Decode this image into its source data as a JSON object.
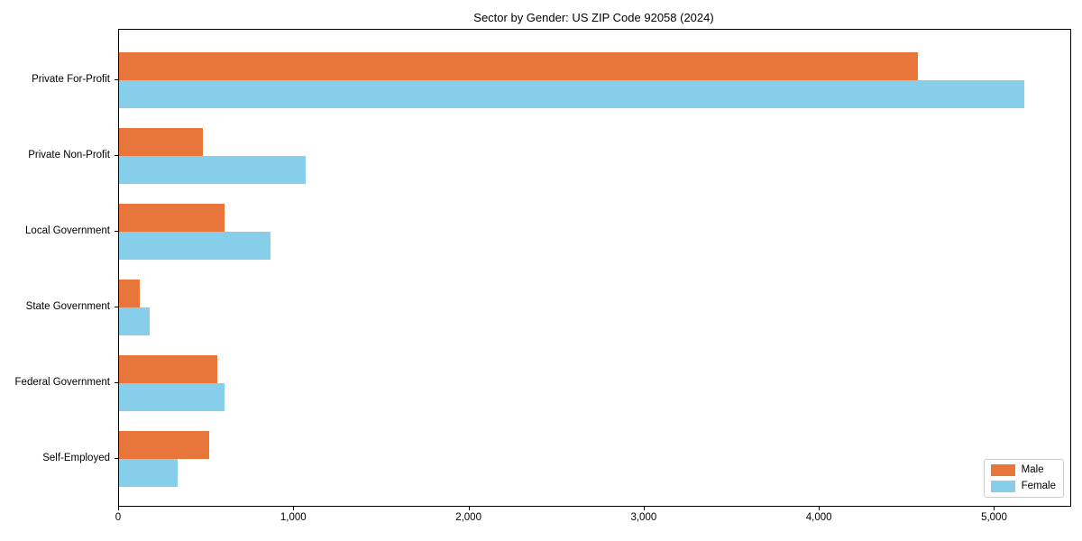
{
  "chart_data": {
    "type": "bar",
    "orientation": "horizontal",
    "title": "Sector by Gender: US ZIP Code 92058 (2024)",
    "categories": [
      "Private For-Profit",
      "Private Non-Profit",
      "Local Government",
      "State Government",
      "Federal Government",
      "Self-Employed"
    ],
    "series": [
      {
        "name": "Male",
        "color": "#e8763a",
        "values": [
          4560,
          480,
          600,
          120,
          560,
          515
        ]
      },
      {
        "name": "Female",
        "color": "#87ceeb",
        "values": [
          5170,
          1065,
          865,
          175,
          600,
          335
        ]
      }
    ],
    "xlabel": "",
    "ylabel": "",
    "xlim": [
      0,
      5430
    ],
    "xticks": [
      0,
      1000,
      2000,
      3000,
      4000,
      5000
    ],
    "xtick_labels": [
      "0",
      "1,000",
      "2,000",
      "3,000",
      "4,000",
      "5,000"
    ],
    "grid": false,
    "legend_position": "lower right",
    "axis_color": "#000000",
    "legend_border_color": "#cccccc"
  }
}
